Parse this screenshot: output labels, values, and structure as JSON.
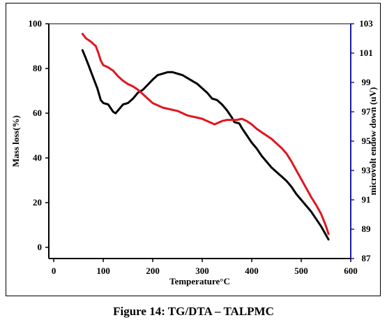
{
  "caption": "Figure 14: TG/DTA – TALPMC",
  "chart_data": {
    "type": "line",
    "xlabel": "Temperature°C",
    "ylabel": "Mass loss(%)",
    "y2label": "microvolt endow down (uV)",
    "xlim": [
      -10,
      600
    ],
    "ylim": [
      -5,
      100
    ],
    "y2lim": [
      87,
      103
    ],
    "x_ticks": [
      0,
      100,
      200,
      300,
      400,
      500,
      600
    ],
    "y_ticks": [
      0,
      20,
      40,
      60,
      80,
      100
    ],
    "y2_ticks": [
      87,
      89,
      91,
      93,
      95,
      97,
      99,
      101,
      103
    ],
    "colors": {
      "dta": "#000000",
      "tg": "#e0161e",
      "right_axis": "#1a1aa8"
    },
    "series": [
      {
        "axis": "y2",
        "color": "#000000",
        "x": [
          58,
          63,
          70,
          80,
          88,
          95,
          100,
          110,
          120,
          125,
          130,
          140,
          150,
          160,
          170,
          180,
          200,
          210,
          220,
          230,
          240,
          250,
          260,
          270,
          280,
          290,
          300,
          310,
          320,
          330,
          340,
          350,
          360,
          365,
          375,
          380,
          390,
          400,
          410,
          420,
          430,
          440,
          450,
          460,
          470,
          480,
          490,
          500,
          510,
          520,
          530,
          540,
          550,
          555
        ],
        "y": [
          101.2,
          100.8,
          100.2,
          99.3,
          98.6,
          97.8,
          97.6,
          97.5,
          97.0,
          96.9,
          97.1,
          97.5,
          97.6,
          97.9,
          98.3,
          98.5,
          99.2,
          99.5,
          99.6,
          99.7,
          99.7,
          99.6,
          99.5,
          99.3,
          99.1,
          98.9,
          98.6,
          98.3,
          97.9,
          97.8,
          97.5,
          97.1,
          96.6,
          96.3,
          96.2,
          95.9,
          95.4,
          94.9,
          94.5,
          94.0,
          93.6,
          93.2,
          92.9,
          92.6,
          92.3,
          91.9,
          91.4,
          91.0,
          90.6,
          90.2,
          89.7,
          89.2,
          88.6,
          88.3
        ]
      },
      {
        "axis": "y",
        "color": "#e0161e",
        "x": [
          58,
          65,
          75,
          85,
          90,
          95,
          100,
          110,
          120,
          130,
          140,
          150,
          160,
          170,
          180,
          190,
          200,
          210,
          220,
          230,
          240,
          250,
          260,
          270,
          280,
          290,
          300,
          310,
          320,
          325,
          330,
          340,
          350,
          360,
          370,
          380,
          390,
          400,
          410,
          420,
          430,
          440,
          450,
          460,
          470,
          480,
          490,
          500,
          510,
          520,
          530,
          540,
          550,
          555
        ],
        "y": [
          95.5,
          93.5,
          92,
          90,
          87,
          83.5,
          81.5,
          80.5,
          79,
          76.5,
          74.5,
          73,
          72,
          70.5,
          68.5,
          66.5,
          64.5,
          63.5,
          62.5,
          62,
          61.5,
          61,
          60,
          59,
          58.5,
          58,
          57.5,
          56.5,
          55.5,
          55,
          55.5,
          56.5,
          57,
          57,
          57,
          57.5,
          56.5,
          55,
          53,
          51.5,
          50,
          48.5,
          46.5,
          44.5,
          42,
          38.5,
          34.5,
          30.5,
          26.5,
          22.5,
          19,
          15,
          9.5,
          6
        ]
      }
    ]
  }
}
